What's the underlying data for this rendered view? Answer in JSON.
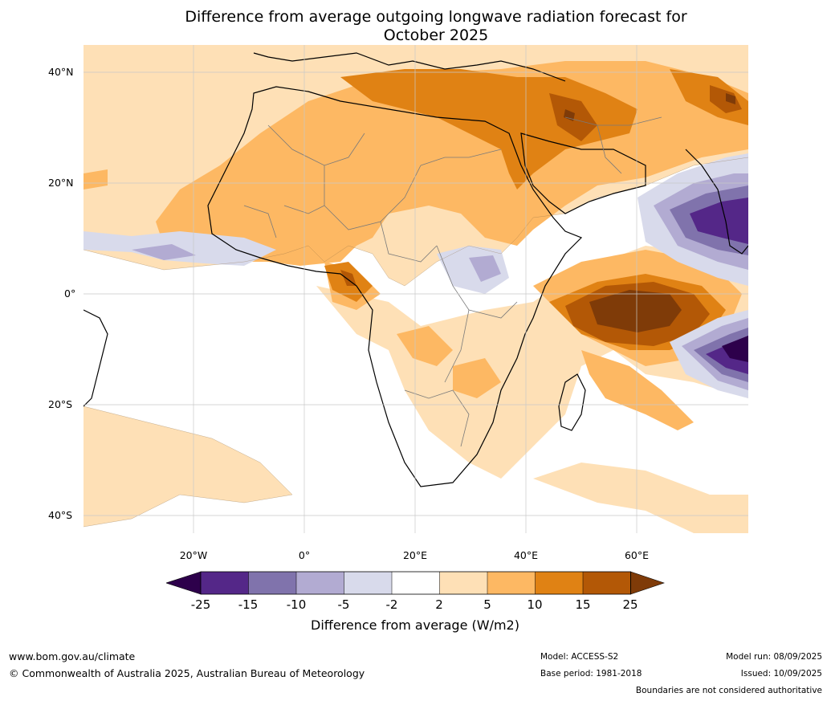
{
  "title": {
    "line1": "Difference from average outgoing longwave radiation forecast for",
    "line2": "October 2025"
  },
  "map": {
    "lat_labels": [
      "40°N",
      "20°N",
      "0°",
      "20°S",
      "40°S"
    ],
    "lon_labels": [
      "20°W",
      "0°",
      "20°E",
      "40°E",
      "60°E"
    ]
  },
  "colorbar": {
    "label": "Difference from average (W/m2)",
    "ticks": [
      "-25",
      "-15",
      "-10",
      "-5",
      "-2",
      "2",
      "5",
      "10",
      "15",
      "25"
    ],
    "colors": {
      "lt_neg25": "#2d004b",
      "neg25_neg15": "#542788",
      "neg15_neg10": "#8073ac",
      "neg10_neg5": "#b2abd2",
      "neg5_neg2": "#d8daeb",
      "neg2_2": "#ffffff",
      "2_5": "#fee0b6",
      "5_10": "#fdb863",
      "10_15": "#e08214",
      "15_25": "#b35806",
      "gt_25": "#7f3b08"
    }
  },
  "footer": {
    "website": "www.bom.gov.au/climate",
    "copyright": "© Commonwealth of Australia 2025, Australian Bureau of Meteorology",
    "model": "Model: ACCESS-S2",
    "base_period": "Base period: 1981-2018",
    "model_run": "Model run: 08/09/2025",
    "issued": "Issued: 10/09/2025",
    "disclaimer": "Boundaries are not considered authoritative"
  }
}
